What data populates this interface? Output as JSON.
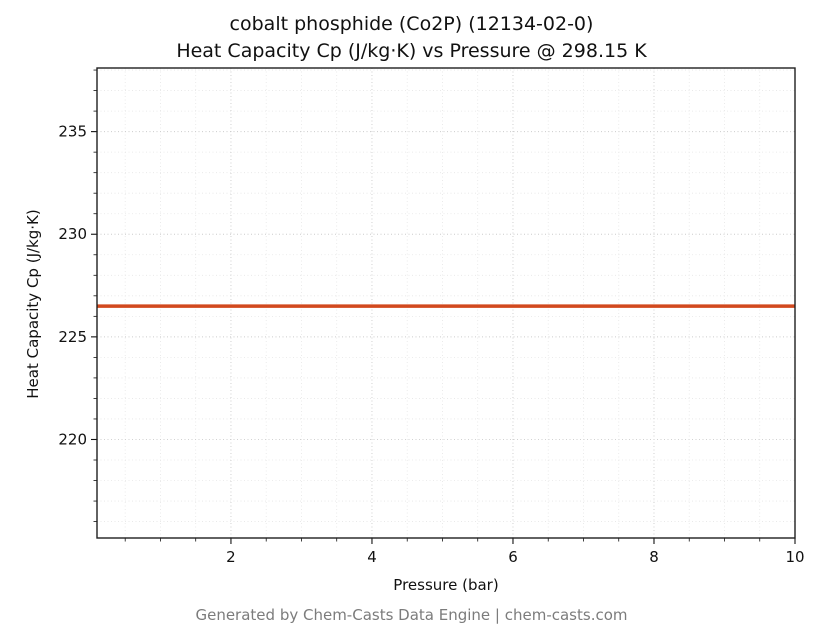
{
  "chart_data": {
    "type": "line",
    "title": "cobalt phosphide (Co2P) (12134-02-0)",
    "subtitle": "Heat Capacity Cp (J/kg·K) vs Pressure @ 298.15 K",
    "xlabel": "Pressure (bar)",
    "ylabel": "Heat Capacity Cp (J/kg·K)",
    "footer": "Generated by Chem-Casts Data Engine | chem-casts.com",
    "xlim": [
      0.1,
      10
    ],
    "ylim": [
      215.2,
      238.1
    ],
    "x_ticks": [
      2,
      4,
      6,
      8,
      10
    ],
    "y_ticks": [
      220,
      225,
      230,
      235
    ],
    "x_minor_step": 0.5,
    "y_minor_step": 1,
    "grid": true,
    "legend": "none",
    "line_color": "#d2491e",
    "line_width": 3.5,
    "series": [
      {
        "name": "Heat Capacity Cp",
        "x": [
          0.1,
          1,
          2,
          3,
          4,
          5,
          6,
          7,
          8,
          9,
          10
        ],
        "y": [
          226.5,
          226.5,
          226.5,
          226.5,
          226.5,
          226.5,
          226.5,
          226.5,
          226.5,
          226.5,
          226.5
        ]
      }
    ]
  }
}
